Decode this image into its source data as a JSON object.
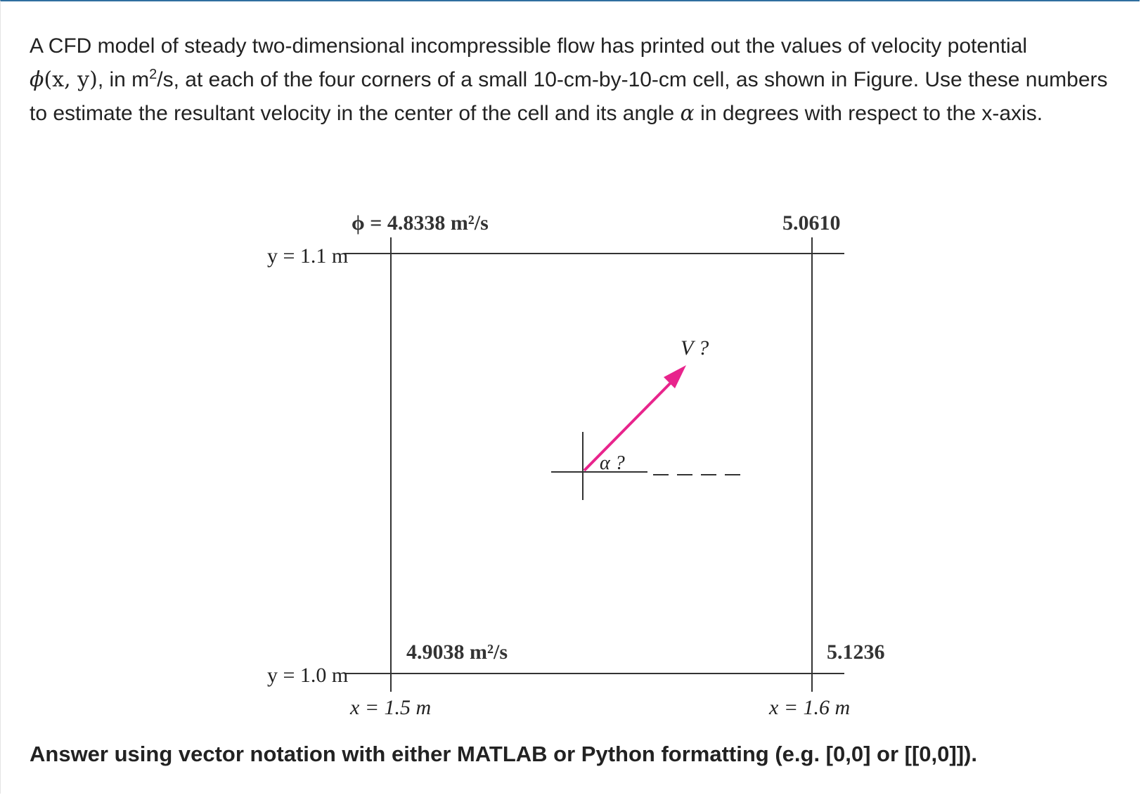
{
  "problem": {
    "part1": "A CFD model of steady two-dimensional incompressible flow has printed out the values of velocity potential",
    "phi_symbol": "ϕ",
    "phi_args": "(x, y)",
    "part2": ", in m",
    "unit_exp": "2",
    "part3": "/s, at each of the four corners of a small 10-cm-by-10-cm cell, as shown in Figure. Use these numbers to estimate the resultant velocity in the center of the cell and its angle",
    "alpha_symbol": "α",
    "part4": "in degrees with respect to the x-axis."
  },
  "figure": {
    "phi_top_left": "ϕ = 4.8338 m²/s",
    "phi_top_right": "5.0610",
    "phi_bottom_left": "4.9038 m²/s",
    "phi_bottom_right": "5.1236",
    "y_top_label": "y = 1.1 m",
    "y_bottom_label": "y = 1.0 m",
    "x_left_label": "x = 1.5 m",
    "x_right_label": "x = 1.6 m",
    "velocity_label": "V ?",
    "angle_label": "α ?",
    "arrow_color": "#e8248c"
  },
  "answer_note": "Answer using vector notation with either MATLAB or Python formatting (e.g. [0,0] or [[0,0]])."
}
